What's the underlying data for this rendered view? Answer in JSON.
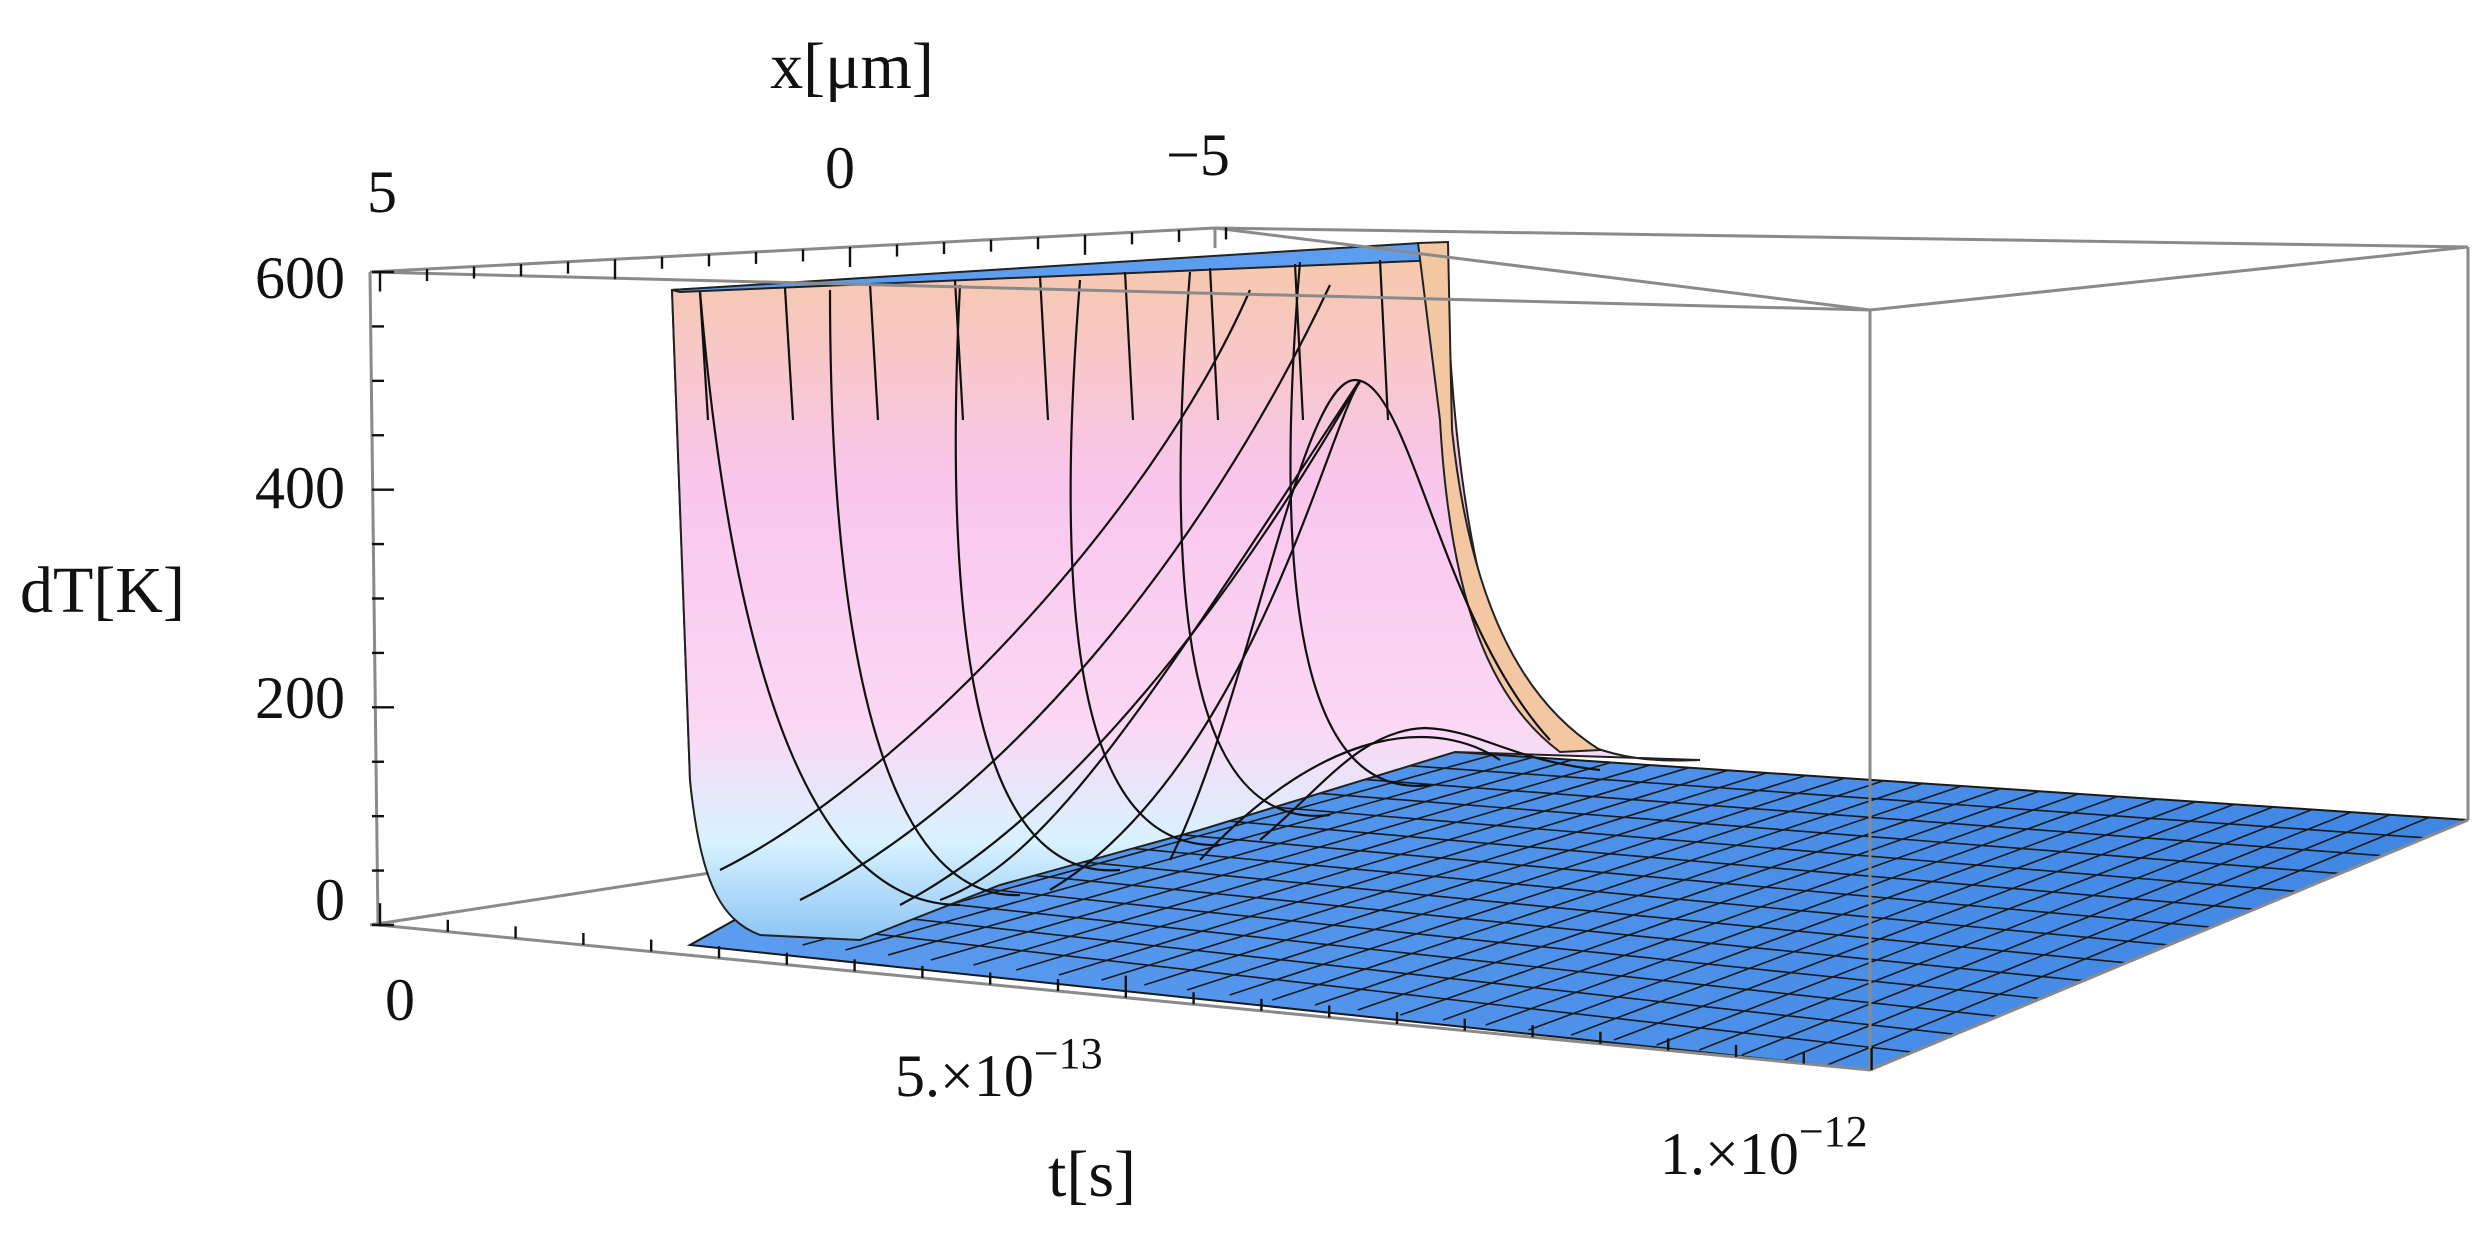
{
  "chart_data": {
    "type": "surface3d",
    "zlabel": "dT[K]",
    "xlabel": "x[μm]",
    "tlabel": "t[s]",
    "z_ticks": [
      {
        "value": 0,
        "label": "0"
      },
      {
        "value": 200,
        "label": "200"
      },
      {
        "value": 400,
        "label": "400"
      },
      {
        "value": 600,
        "label": "600"
      }
    ],
    "x_ticks": [
      {
        "value": 5,
        "label": "5"
      },
      {
        "value": 0,
        "label": "0"
      },
      {
        "value": -5,
        "label": "−5"
      }
    ],
    "t_ticks": [
      {
        "value": 0,
        "label": "0",
        "label_base": "0",
        "label_exp": ""
      },
      {
        "value": 5e-13,
        "label": "5.×10⁻¹³",
        "label_base": "5.×10",
        "label_exp": "−13"
      },
      {
        "value": 1e-12,
        "label": "1.×10⁻¹²",
        "label_base": "1.×10",
        "label_exp": "−12"
      }
    ],
    "zlim": [
      0,
      600
    ],
    "xlim": [
      -8,
      8
    ],
    "tlim": [
      0,
      1e-12
    ],
    "surface_clipped_at": 600,
    "pulse_peak_time": 2.5e-13,
    "description_peaks": [
      {
        "x": 0,
        "peak_dT": 600
      },
      {
        "x": -2,
        "peak_dT": 600
      },
      {
        "x": -4,
        "peak_dT": 490
      },
      {
        "x": -6,
        "peak_dT": 175
      }
    ],
    "colors": {
      "surface_top": "#f6c9a8",
      "surface_mid": "#f7c5ec",
      "surface_low": "#d9f3ff",
      "floor": "#4f8fe6",
      "mesh": "#000000",
      "box": "#888888"
    }
  }
}
